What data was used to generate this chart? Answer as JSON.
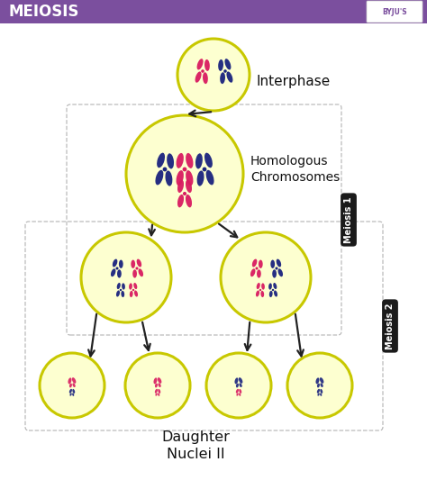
{
  "title": "MEIOSIS",
  "title_bg": "#7B4F9E",
  "title_fg": "#FFFFFF",
  "bg_color": "#FFFFFF",
  "cell_fill": "#FDFFD0",
  "cell_edge": "#C8C800",
  "cell_edge_lw": 2.5,
  "label_interphase": "Interphase",
  "label_homologous": "Homologous\nChromosomes",
  "label_meiosis1": "Meiosis 1",
  "label_meiosis2": "Meiosis 2",
  "label_daughter": "Daughter\nNuclei II",
  "pink": "#D81B60",
  "blue": "#1A237E",
  "dashed_color": "#BBBBBB",
  "arrow_color": "#222222",
  "c1": [
    237,
    450,
    40
  ],
  "c2": [
    205,
    340,
    65
  ],
  "c3": [
    140,
    225,
    50
  ],
  "c4": [
    295,
    225,
    50
  ],
  "c5": [
    80,
    105,
    36
  ],
  "c6": [
    175,
    105,
    36
  ],
  "c7": [
    265,
    105,
    36
  ],
  "c8": [
    355,
    105,
    36
  ]
}
